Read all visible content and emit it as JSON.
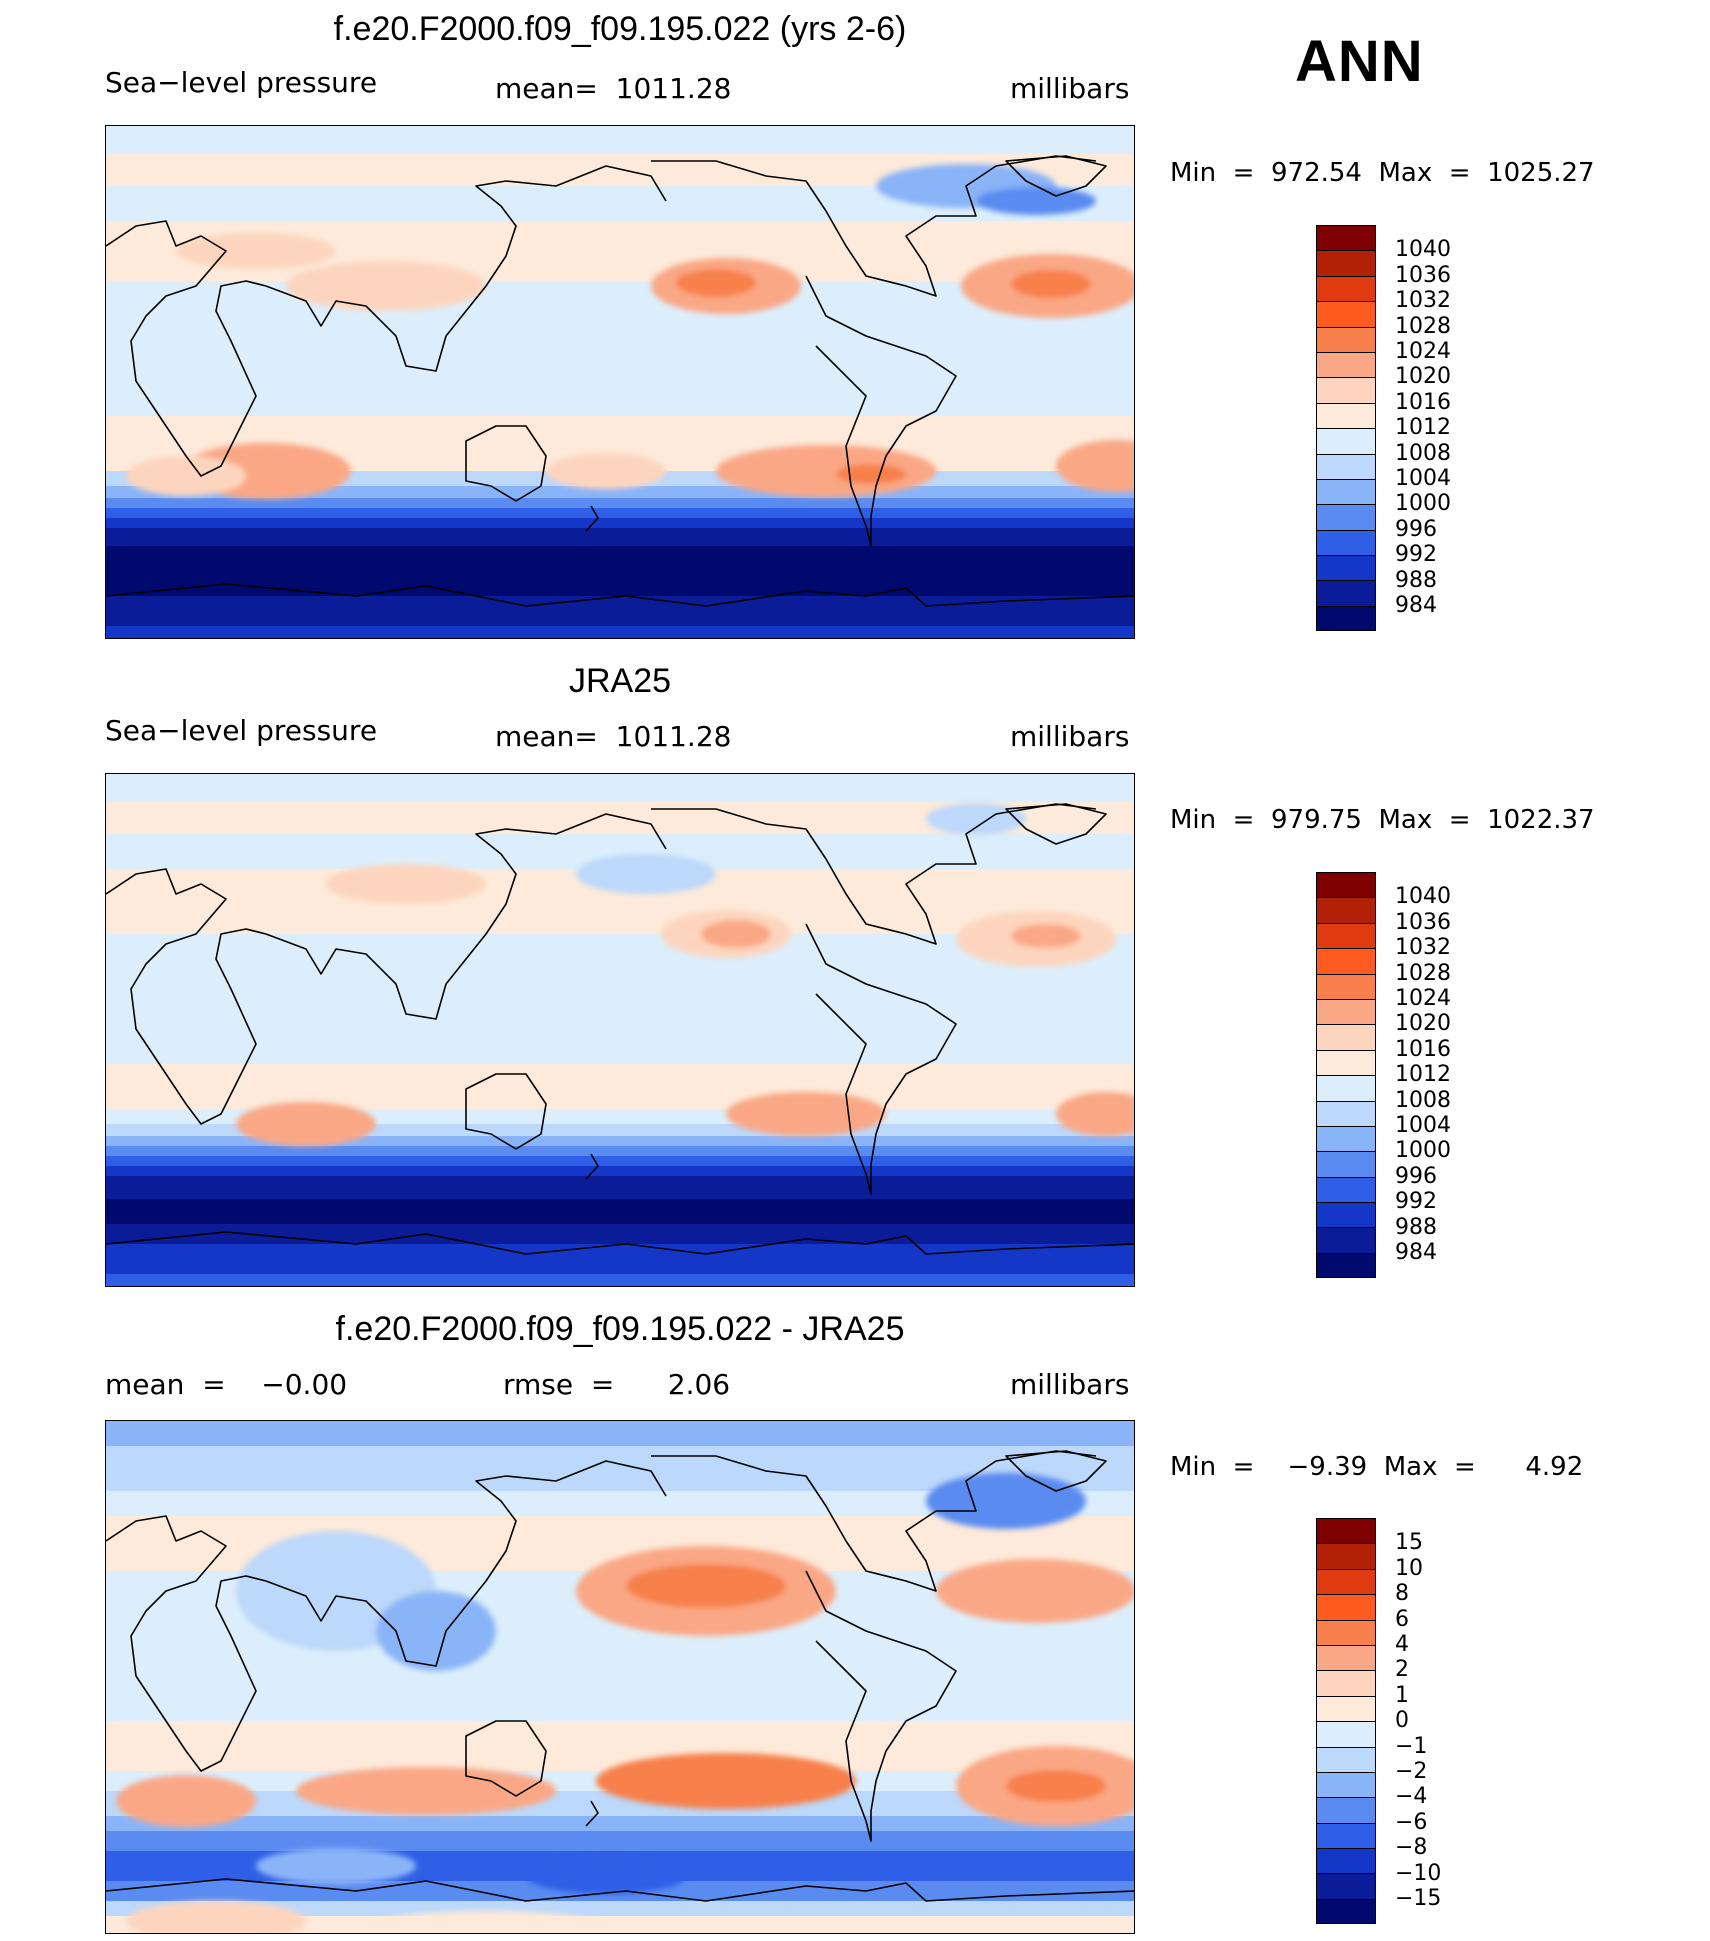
{
  "season": "ANN",
  "panels": [
    {
      "title": "f.e20.F2000.f09_f09.195.022 (yrs 2-6)",
      "left_label": "Sea−level pressure",
      "center_label": "mean=  1011.28",
      "units": "millibars",
      "minmax": "Min  =  972.54  Max  =  1025.27",
      "colorbar_labels": [
        "1040",
        "1036",
        "1032",
        "1028",
        "1024",
        "1020",
        "1016",
        "1012",
        "1008",
        "1004",
        "1000",
        "996",
        "992",
        "988",
        "984"
      ]
    },
    {
      "title": "JRA25",
      "left_label": "Sea−level pressure",
      "center_label": "mean=  1011.28",
      "units": "millibars",
      "minmax": "Min  =  979.75  Max  =  1022.37",
      "colorbar_labels": [
        "1040",
        "1036",
        "1032",
        "1028",
        "1024",
        "1020",
        "1016",
        "1012",
        "1008",
        "1004",
        "1000",
        "996",
        "992",
        "988",
        "984"
      ]
    },
    {
      "title": "f.e20.F2000.f09_f09.195.022 - JRA25",
      "left_label": "mean  =    −0.00",
      "center_label": "rmse  =      2.06",
      "units": "millibars",
      "minmax": "Min  =    −9.39  Max  =      4.92",
      "colorbar_labels": [
        "15",
        "10",
        "8",
        "6",
        "4",
        "2",
        "1",
        "0",
        "−1",
        "−2",
        "−4",
        "−6",
        "−8",
        "−10",
        "−15"
      ]
    }
  ],
  "colors": {
    "scale": [
      "#7f0000",
      "#b22005",
      "#e03a10",
      "#ff5a1f",
      "#f7804c",
      "#faa785",
      "#fdd5be",
      "#fdeada",
      "#dceefb",
      "#bcd8fa",
      "#8ab4f8",
      "#5a8bf0",
      "#2f5fe6",
      "#1537c8",
      "#0a1c97",
      "#000a6e"
    ],
    "coast": "#000000"
  },
  "chart_data": [
    {
      "type": "heatmap",
      "title": "f.e20.F2000.f09_f09.195.022 (yrs 2-6)",
      "variable": "Sea-level pressure",
      "units": "millibars",
      "mean": 1011.28,
      "min": 972.54,
      "max": 1025.27,
      "contour_levels": [
        984,
        988,
        992,
        996,
        1000,
        1004,
        1008,
        1012,
        1016,
        1020,
        1024,
        1028,
        1032,
        1036,
        1040
      ]
    },
    {
      "type": "heatmap",
      "title": "JRA25",
      "variable": "Sea-level pressure",
      "units": "millibars",
      "mean": 1011.28,
      "min": 979.75,
      "max": 1022.37,
      "contour_levels": [
        984,
        988,
        992,
        996,
        1000,
        1004,
        1008,
        1012,
        1016,
        1020,
        1024,
        1028,
        1032,
        1036,
        1040
      ]
    },
    {
      "type": "heatmap",
      "title": "f.e20.F2000.f09_f09.195.022 - JRA25",
      "units": "millibars",
      "mean": -0.0,
      "rmse": 2.06,
      "min": -9.39,
      "max": 4.92,
      "contour_levels": [
        -15,
        -10,
        -8,
        -6,
        -4,
        -2,
        -1,
        0,
        1,
        2,
        4,
        6,
        8,
        10,
        15
      ]
    }
  ]
}
